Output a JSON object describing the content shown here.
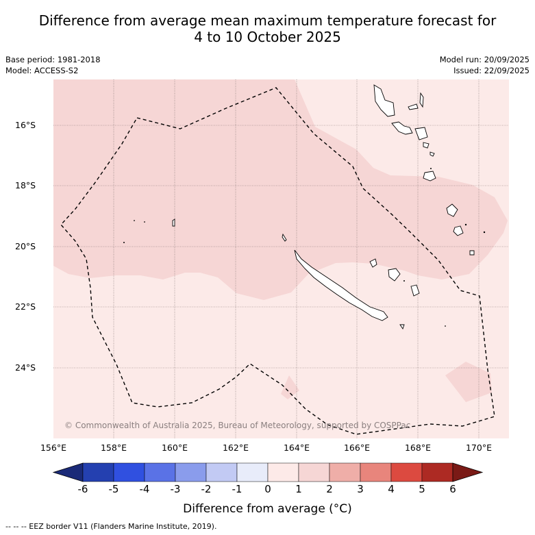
{
  "title_line1": "Difference from average mean maximum temperature forecast for",
  "title_line2": "4 to 10 October 2025",
  "base_period": "Base period: 1981-2018",
  "model": "Model: ACCESS-S2",
  "model_run": "Model run: 20/09/2025",
  "issued": "Issued: 22/09/2025",
  "lat_labels": [
    "16°S",
    "18°S",
    "20°S",
    "22°S",
    "24°S"
  ],
  "lon_labels": [
    "156°E",
    "158°E",
    "160°E",
    "162°E",
    "164°E",
    "166°E",
    "168°E",
    "170°E"
  ],
  "credit": "© Commonwealth of Australia 2025, Bureau of Meteorology, supported by COSPPac",
  "colorbar": {
    "ticks": [
      "-6",
      "-5",
      "-4",
      "-3",
      "-2",
      "-1",
      "0",
      "1",
      "2",
      "3",
      "4",
      "5",
      "6"
    ],
    "colors": [
      "#1a2a78",
      "#2440b0",
      "#3050e0",
      "#5a72e6",
      "#8a9cec",
      "#c2caf4",
      "#e8ecfa",
      "#fdeae8",
      "#f6d6d5",
      "#efaea8",
      "#e8857c",
      "#dc4a40",
      "#ad2a23",
      "#7a1a16"
    ],
    "title": "Difference from average (°C)"
  },
  "footer": "--  --  -- EEZ border V11 (Flanders Marine Institute, 2019).",
  "map_colors": {
    "light": "#fceae8",
    "medium": "#f6d7d6",
    "grid": "#7a6a6a"
  }
}
